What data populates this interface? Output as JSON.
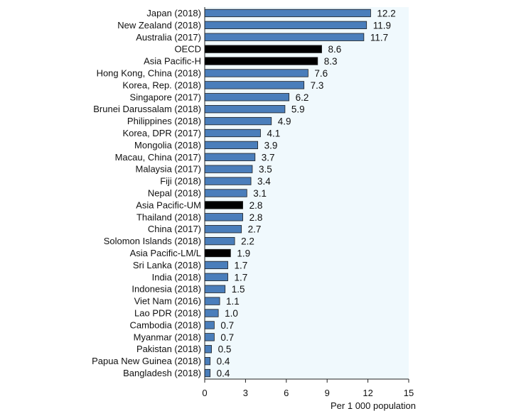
{
  "chart_data": {
    "type": "bar",
    "orientation": "horizontal",
    "categories": [
      "Japan (2018)",
      "New Zealand (2018)",
      "Australia (2017)",
      "OECD",
      "Asia Pacific-H",
      "Hong Kong, China (2018)",
      "Korea, Rep. (2018)",
      "Singapore (2017)",
      "Brunei Darussalam (2018)",
      "Philippines (2018)",
      "Korea, DPR (2017)",
      "Mongolia (2018)",
      "Macau, China (2017)",
      "Malaysia (2017)",
      "Fiji (2018)",
      "Nepal (2018)",
      "Asia Pacific-UM",
      "Thailand (2018)",
      "China (2017)",
      "Solomon Islands (2018)",
      "Asia Pacific-LM/L",
      "Sri Lanka (2018)",
      "India (2018)",
      "Indonesia (2018)",
      "Viet Nam (2016)",
      "Lao PDR (2018)",
      "Cambodia (2018)",
      "Myanmar (2018)",
      "Pakistan (2018)",
      "Papua New Guinea (2018)",
      "Bangladesh (2018)"
    ],
    "values": [
      12.2,
      11.9,
      11.7,
      8.6,
      8.3,
      7.6,
      7.3,
      6.2,
      5.9,
      4.9,
      4.1,
      3.9,
      3.7,
      3.5,
      3.4,
      3.1,
      2.8,
      2.8,
      2.7,
      2.2,
      1.9,
      1.7,
      1.7,
      1.5,
      1.1,
      1.0,
      0.7,
      0.7,
      0.5,
      0.4,
      0.4
    ],
    "value_labels": [
      "12.2",
      "11.9",
      "11.7",
      "8.6",
      "8.3",
      "7.6",
      "7.3",
      "6.2",
      "5.9",
      "4.9",
      "4.1",
      "3.9",
      "3.7",
      "3.5",
      "3.4",
      "3.1",
      "2.8",
      "2.8",
      "2.7",
      "2.2",
      "1.9",
      "1.7",
      "1.7",
      "1.5",
      "1.1",
      "1.0",
      "0.7",
      "0.7",
      "0.5",
      "0.4",
      "0.4"
    ],
    "highlighted": [
      "OECD",
      "Asia Pacific-H",
      "Asia Pacific-UM",
      "Asia Pacific-LM/L"
    ],
    "xlim": [
      0,
      15
    ],
    "xticks": [
      0,
      3,
      6,
      9,
      12,
      15
    ],
    "xtick_labels": [
      "0",
      "3",
      "6",
      "9",
      "12",
      "15"
    ],
    "xlabel": "Per 1 000 population",
    "title": "",
    "grid": false,
    "colors": {
      "bar": "#4a7ebb",
      "bar_highlight": "#000000",
      "bar_outline": "#1f1f1f",
      "plot_background": "#f0f9fd"
    }
  }
}
